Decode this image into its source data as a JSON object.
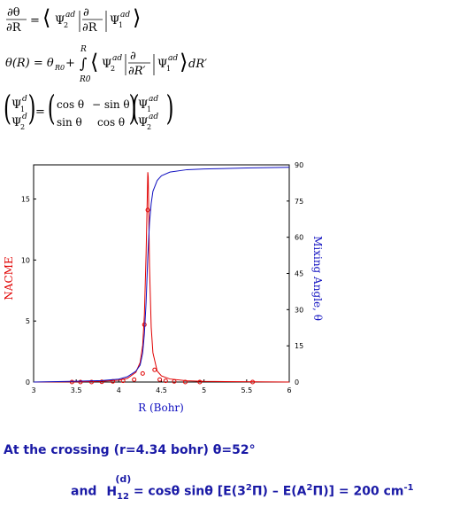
{
  "equations": {
    "eq1": "∂θ/∂R = ⟨Ψ2ad | ∂/∂R | Ψ1ad⟩",
    "eq2": "θ(R) = θR0 + ∫R0..R ⟨Ψ2ad | ∂/∂R′ | Ψ1ad⟩ dR′",
    "eq3": "(Ψ1d, Ψ2d) = (cos θ  −sin θ ; sin θ  cos θ)(Ψ1ad, Ψ2ad)"
  },
  "chart_data": {
    "type": "line",
    "xlabel": "R (Bohr)",
    "ylabel_left": "NACME",
    "ylabel_right": "Mixing Angle, θ",
    "xlim": [
      3,
      6
    ],
    "ylim_left": [
      0,
      17.8
    ],
    "ylim_right": [
      0,
      90
    ],
    "x_ticks": [
      "3",
      "3.5",
      "4",
      "4.5",
      "5",
      "5.5",
      "6"
    ],
    "y_left_ticks": [
      "0",
      "5",
      "10",
      "15"
    ],
    "y_right_ticks": [
      "0",
      "15",
      "30",
      "45",
      "60",
      "75",
      "90"
    ],
    "colors": {
      "nacme": "#e00000",
      "mixing": "#1010c0"
    },
    "series": [
      {
        "axis": "left",
        "style": "line",
        "x": [
          3.0,
          3.5,
          3.8,
          4.0,
          4.1,
          4.2,
          4.25,
          4.28,
          4.3,
          4.32,
          4.335,
          4.34,
          4.345,
          4.35,
          4.36,
          4.38,
          4.4,
          4.45,
          4.5,
          4.6,
          4.8,
          5.0,
          6.0
        ],
        "values": [
          0.0,
          0.02,
          0.06,
          0.15,
          0.3,
          0.8,
          1.6,
          3.0,
          5.5,
          10.5,
          15.5,
          17.2,
          16.8,
          14.5,
          9.5,
          4.5,
          2.4,
          0.9,
          0.5,
          0.25,
          0.1,
          0.05,
          0.0
        ]
      },
      {
        "axis": "left",
        "style": "markers",
        "x": [
          3.45,
          3.55,
          3.68,
          3.8,
          3.93,
          4.05,
          4.18,
          4.28,
          4.3,
          4.34,
          4.42,
          4.48,
          4.55,
          4.65,
          4.78,
          4.95,
          5.57
        ],
        "values": [
          0.0,
          0.0,
          0.0,
          0.02,
          0.05,
          0.1,
          0.2,
          0.7,
          4.7,
          14.1,
          1.0,
          0.2,
          0.1,
          0.05,
          0.0,
          0.0,
          0.0
        ]
      },
      {
        "axis": "right",
        "style": "line",
        "x": [
          3.0,
          3.5,
          3.8,
          4.0,
          4.1,
          4.2,
          4.25,
          4.28,
          4.3,
          4.32,
          4.34,
          4.36,
          4.38,
          4.4,
          4.45,
          4.5,
          4.6,
          4.8,
          5.0,
          5.5,
          6.0
        ],
        "values": [
          0.0,
          0.3,
          0.6,
          1.2,
          2.2,
          4.5,
          7.0,
          12.0,
          20.0,
          33.0,
          52.0,
          66.0,
          74.0,
          79.0,
          83.5,
          85.5,
          87.0,
          88.0,
          88.3,
          88.7,
          89.0
        ]
      }
    ]
  },
  "notes": {
    "crossing": "At the crossing (r=4.34 bohr) θ=52°",
    "coupling_prefix": "and",
    "coupling_symbol": "H",
    "coupling_sup": "(d)",
    "coupling_sub": "12",
    "coupling_rest_1": "= cosθ sinθ [E(3",
    "coupling_sup2": "2",
    "coupling_rest_2": "Π) – E(A",
    "coupling_sup3": "2",
    "coupling_rest_3": "Π)] = 200 cm",
    "coupling_sup4": "-1"
  }
}
